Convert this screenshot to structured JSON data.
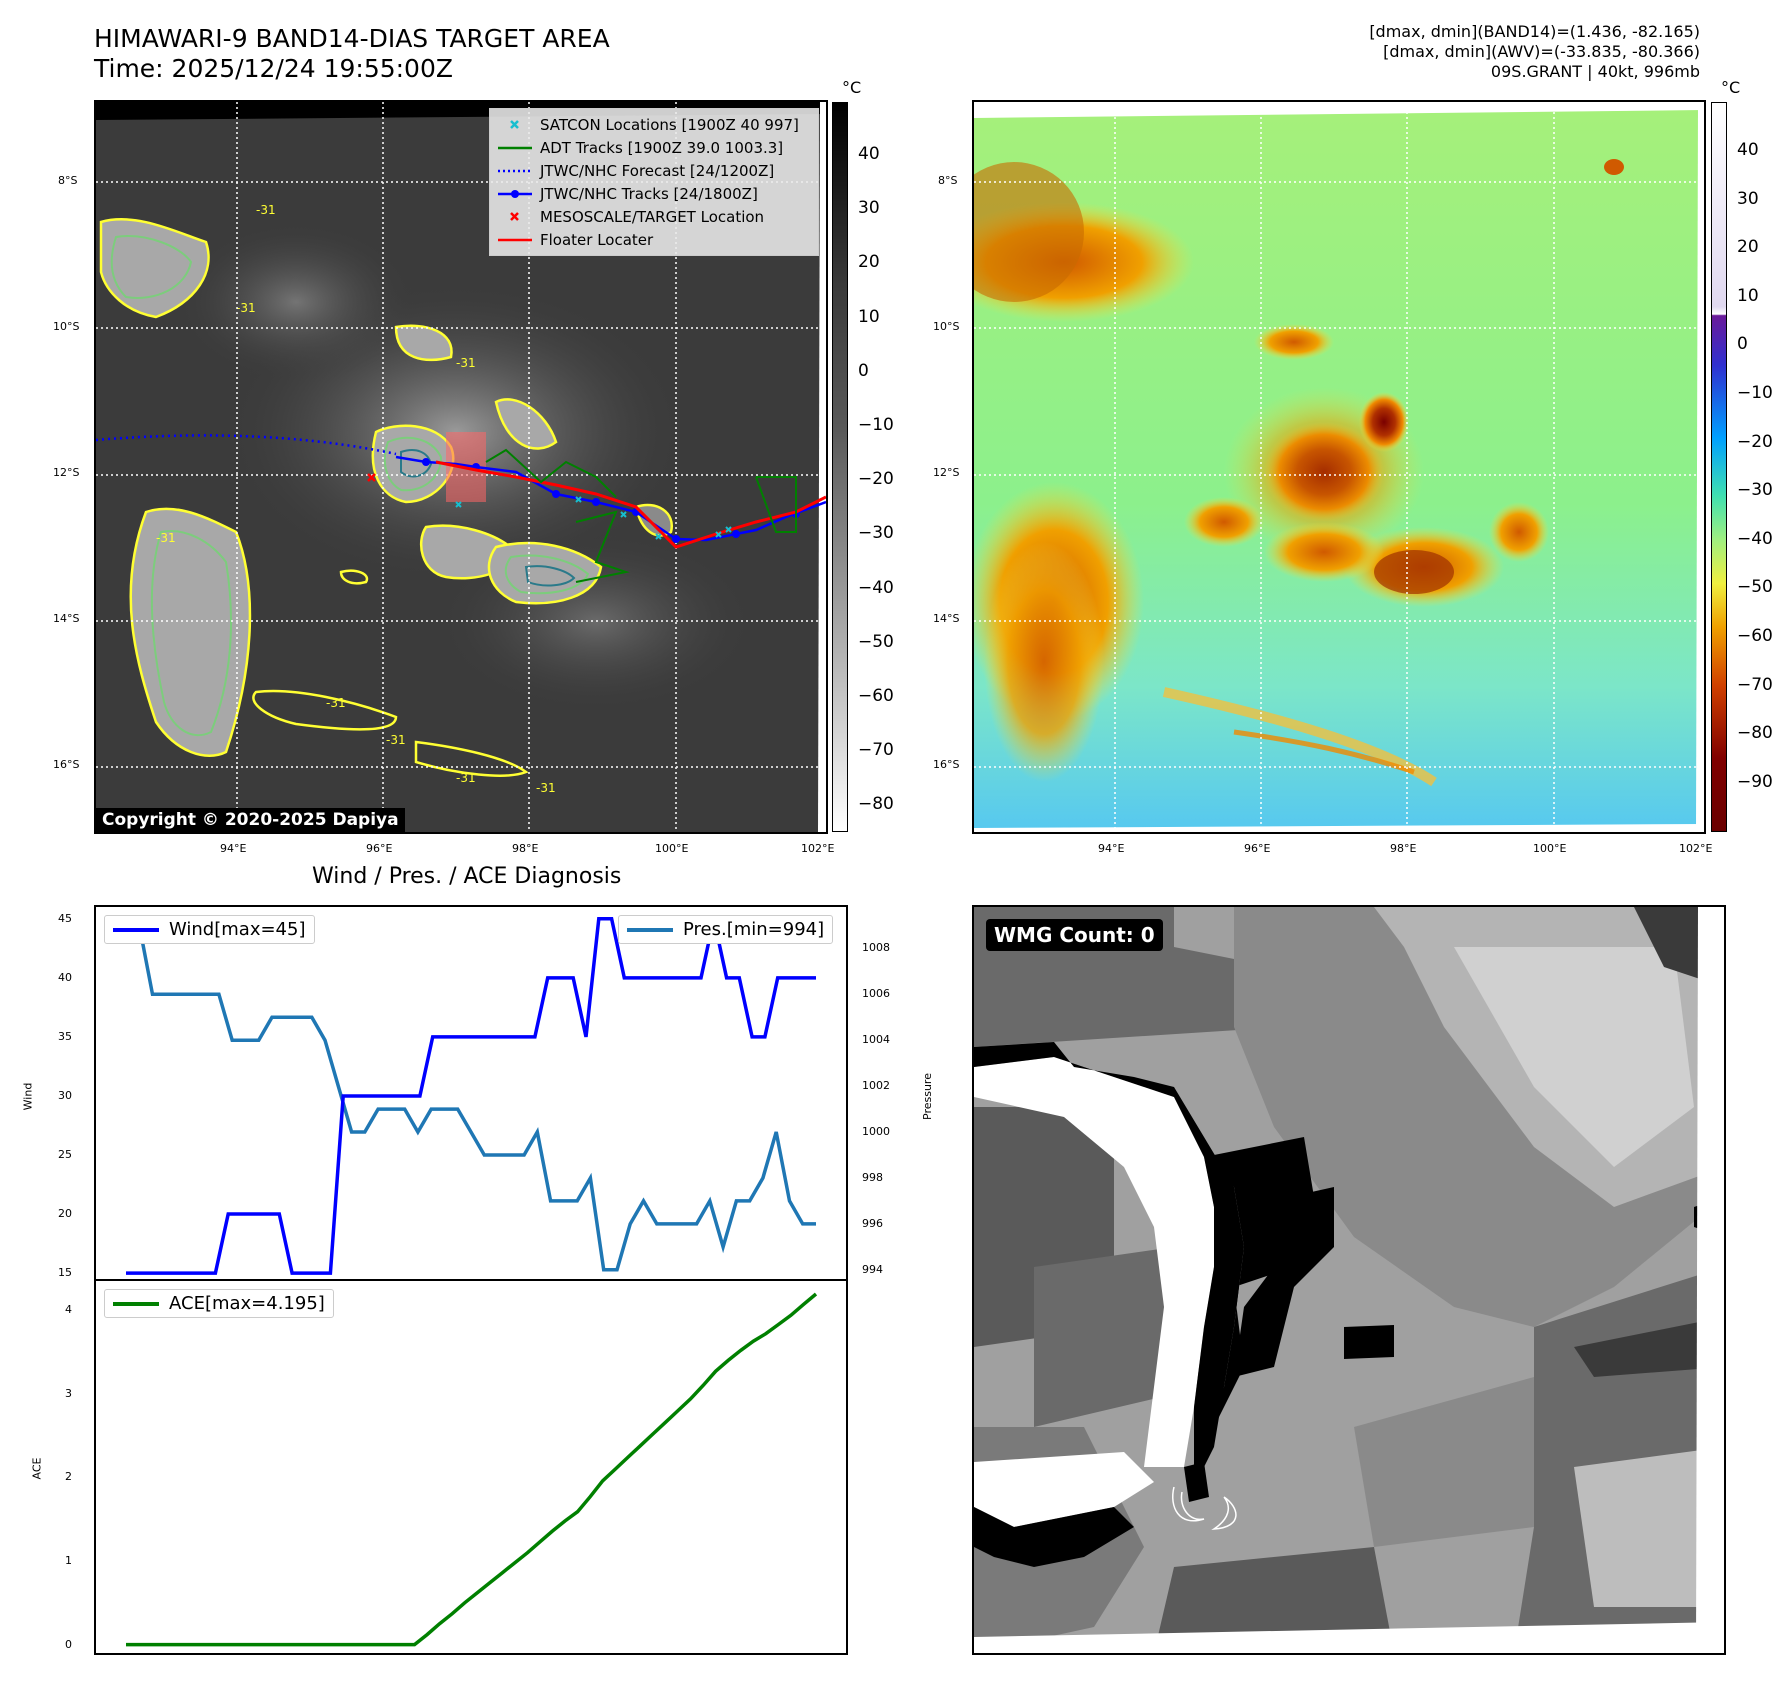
{
  "header": {
    "title_line1": "HIMAWARI-9 BAND14-DIAS TARGET AREA",
    "title_line2": "Time: 2025/12/24 19:55:00Z",
    "stats_line1": "[dmax, dmin](BAND14)=(1.436, -82.165)",
    "stats_line2": "[dmax, dmin](AWV)=(-33.835, -80.366)",
    "stats_line3": "09S.GRANT | 40kt, 996mb"
  },
  "map_axes": {
    "lat_labels": [
      "8°S",
      "10°S",
      "12°S",
      "14°S",
      "16°S"
    ],
    "lon_labels": [
      "94°E",
      "96°E",
      "98°E",
      "100°E",
      "102°E"
    ]
  },
  "ir_panel": {
    "colorbar_unit": "°C",
    "colorbar_ticks": [
      "40",
      "30",
      "20",
      "10",
      "0",
      "−10",
      "−20",
      "−30",
      "−40",
      "−50",
      "−60",
      "−70",
      "−80"
    ],
    "legend": [
      {
        "label": "SATCON Locations [1900Z 40 997]",
        "icon": "cyan-x-marker",
        "color": "#17becf"
      },
      {
        "label": "ADT Tracks [1900Z 39.0 1003.3]",
        "icon": "green-line",
        "color": "#008000"
      },
      {
        "label": "JTWC/NHC Forecast [24/1200Z]",
        "icon": "blue-dotted-line",
        "color": "#0000ff"
      },
      {
        "label": "JTWC/NHC Tracks [24/1800Z]",
        "icon": "blue-line-dot",
        "color": "#0000ff"
      },
      {
        "label": "MESOSCALE/TARGET Location",
        "icon": "red-x-marker",
        "color": "#ff0000"
      },
      {
        "label": "Floater Locater",
        "icon": "red-line",
        "color": "#ff0000"
      }
    ],
    "copyright": "Copyright © 2020-2025 Dapiya",
    "contour_labels": [
      "-31",
      "-31",
      "-31",
      "-31",
      "-31",
      "-31",
      "-31",
      "-31"
    ]
  },
  "awv_panel": {
    "colorbar_unit": "°C",
    "colorbar_ticks": [
      "40",
      "30",
      "20",
      "10",
      "0",
      "−10",
      "−20",
      "−30",
      "−40",
      "−50",
      "−60",
      "−70",
      "−80",
      "−90"
    ]
  },
  "wmg_panel": {
    "badge": "WMG Count: 0"
  },
  "colors": {
    "wind": "#0000ff",
    "pressure": "#1f77b4",
    "ace": "#008000",
    "ir_contour_yellow": "#ffff33",
    "ir_contour_green": "#7ccd7c"
  },
  "chart_data": [
    {
      "type": "line",
      "title": "Wind / Pres. / ACE Diagnosis",
      "ylabel": "Wind",
      "y2label": "Pressure",
      "ylim": [
        14.5,
        46
      ],
      "y2lim": [
        993.6,
        1009.8
      ],
      "yticks": [
        "45",
        "40",
        "35",
        "30",
        "25",
        "20",
        "15"
      ],
      "y2ticks": [
        "1008",
        "1006",
        "1004",
        "1002",
        "1000",
        "998",
        "996",
        "994"
      ],
      "series": [
        {
          "name": "Wind[max=45]",
          "axis": "left",
          "values": [
            15,
            15,
            15,
            15,
            15,
            15,
            15,
            15,
            20,
            20,
            20,
            20,
            20,
            15,
            15,
            15,
            15,
            30,
            30,
            30,
            30,
            30,
            30,
            30,
            35,
            35,
            35,
            35,
            35,
            35,
            35,
            35,
            35,
            40,
            40,
            40,
            35,
            45,
            45,
            40,
            40,
            40,
            40,
            40,
            40,
            40,
            45,
            40,
            40,
            35,
            35,
            40,
            40,
            40,
            40
          ]
        },
        {
          "name": "Pres.[min=994]",
          "axis": "right",
          "values": [
            1009,
            1009,
            1006,
            1006,
            1006,
            1006,
            1006,
            1006,
            1004,
            1004,
            1004,
            1005,
            1005,
            1005,
            1005,
            1004,
            1002,
            1000,
            1000,
            1001,
            1001,
            1001,
            1000,
            1001,
            1001,
            1001,
            1000,
            999,
            999,
            999,
            999,
            1000,
            997,
            997,
            997,
            998,
            994,
            994,
            996,
            997,
            996,
            996,
            996,
            996,
            997,
            995,
            997,
            997,
            998,
            1000,
            997,
            996,
            996
          ]
        }
      ]
    },
    {
      "type": "line",
      "ylabel": "ACE",
      "ylim": [
        -0.1,
        4.35
      ],
      "yticks": [
        "4",
        "3",
        "2",
        "1",
        "0"
      ],
      "series": [
        {
          "name": "ACE[max=4.195]",
          "values": [
            0,
            0,
            0,
            0,
            0,
            0,
            0,
            0,
            0,
            0,
            0,
            0,
            0,
            0,
            0,
            0,
            0,
            0,
            0,
            0,
            0,
            0,
            0,
            0,
            0.12,
            0.25,
            0.37,
            0.5,
            0.62,
            0.74,
            0.86,
            0.98,
            1.1,
            1.23,
            1.36,
            1.48,
            1.59,
            1.77,
            1.96,
            2.1,
            2.24,
            2.38,
            2.52,
            2.66,
            2.8,
            2.94,
            3.1,
            3.27,
            3.4,
            3.52,
            3.63,
            3.72,
            3.83,
            3.94,
            4.07,
            4.195
          ]
        }
      ]
    }
  ]
}
